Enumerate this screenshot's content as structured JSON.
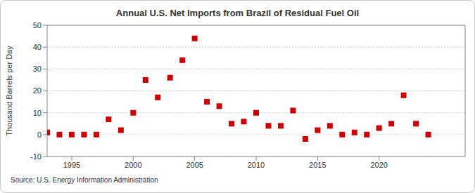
{
  "chart_data": {
    "type": "scatter",
    "title": "Annual U.S. Net Imports from Brazil of Residual Fuel Oil",
    "ylabel": "Thousand Barrels per Day",
    "annotations": [
      "Source: U.S. Energy Information Administration"
    ],
    "x": [
      1993,
      1994,
      1995,
      1996,
      1997,
      1998,
      1999,
      2000,
      2001,
      2002,
      2003,
      2004,
      2005,
      2006,
      2007,
      2008,
      2009,
      2010,
      2011,
      2012,
      2013,
      2014,
      2015,
      2016,
      2017,
      2018,
      2019,
      2020,
      2021,
      2022,
      2023,
      2024
    ],
    "values": [
      1,
      0,
      0,
      0,
      0,
      7,
      2,
      10,
      25,
      17,
      26,
      34,
      44,
      15,
      13,
      5,
      6,
      10,
      4,
      4,
      11,
      -2,
      2,
      4,
      0,
      1,
      0,
      3,
      5,
      18,
      5,
      0
    ],
    "color": "#cc0000",
    "marker": "square",
    "xlim": [
      1993,
      2027
    ],
    "xticks": [
      1995,
      2000,
      2005,
      2010,
      2015,
      2020
    ],
    "ylim": [
      -10,
      50
    ],
    "yticks": [
      -10,
      0,
      10,
      20,
      30,
      40,
      50
    ],
    "grid": true
  }
}
